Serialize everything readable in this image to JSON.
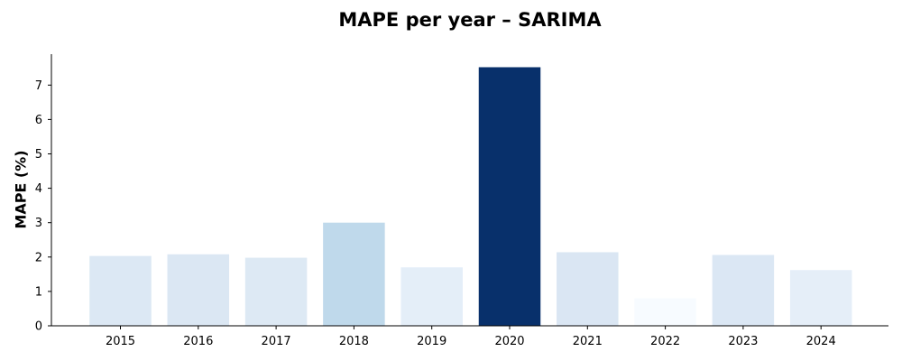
{
  "chart_data": {
    "type": "bar",
    "title": "MAPE per year – SARIMA",
    "xlabel": "",
    "ylabel": "MAPE (%)",
    "categories": [
      "2015",
      "2016",
      "2017",
      "2018",
      "2019",
      "2020",
      "2021",
      "2022",
      "2023",
      "2024"
    ],
    "values": [
      2.03,
      2.08,
      1.98,
      3.0,
      1.7,
      7.52,
      2.14,
      0.8,
      2.06,
      1.62
    ],
    "colors": [
      "#dce8f4",
      "#dbe7f3",
      "#dde9f4",
      "#bfd9eb",
      "#e4eef8",
      "#08306b",
      "#dae6f3",
      "#f7fbff",
      "#dbe7f4",
      "#e5eef8"
    ],
    "color_scale": "Blues",
    "ylim": [
      0,
      7.9
    ],
    "yticks": [
      0,
      1,
      2,
      3,
      4,
      5,
      6,
      7
    ],
    "grid": false,
    "legend": "none"
  }
}
